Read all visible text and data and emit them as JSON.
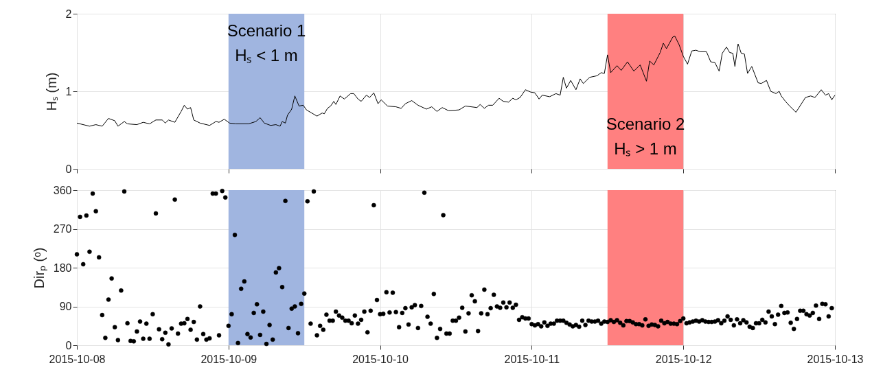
{
  "chart_data": [
    {
      "type": "line",
      "ylabel": "Hₛ (m)",
      "xlim": [
        "2015-10-08",
        "2015-10-13"
      ],
      "xticks": [
        "2015-10-08",
        "2015-10-09",
        "2015-10-10",
        "2015-10-11",
        "2015-10-12",
        "2015-10-13"
      ],
      "ylim": [
        0,
        2
      ],
      "yticks": [
        0,
        1,
        2
      ],
      "grid": true,
      "tick_labels": "y",
      "marker": "none",
      "line_style": "solid",
      "bands": [
        {
          "axis": "x",
          "from": "2015-10-09T00:00",
          "to": "2015-10-09T12:00",
          "color": "#a0b5e0",
          "label": "Scenario 1\nHₛ < 1 m"
        },
        {
          "axis": "x",
          "from": "2015-10-11T12:00",
          "to": "2015-10-12T00:00",
          "color": "#ff8080",
          "label": "Scenario 2\nHₛ > 1 m"
        }
      ],
      "x": [
        "2015-10-08T00:00",
        "2015-10-08T02:00",
        "2015-10-08T03:00",
        "2015-10-08T04:00",
        "2015-10-08T05:00",
        "2015-10-08T06:00",
        "2015-10-08T06:30",
        "2015-10-08T07:30",
        "2015-10-08T08:00",
        "2015-10-08T09:30",
        "2015-10-08T10:30",
        "2015-10-08T11:30",
        "2015-10-08T12:30",
        "2015-10-08T13:30",
        "2015-10-08T14:00",
        "2015-10-08T14:30",
        "2015-10-08T15:30",
        "2015-10-08T16:30",
        "2015-10-08T17:00",
        "2015-10-08T17:30",
        "2015-10-08T18:00",
        "2015-10-08T18:30",
        "2015-10-08T19:30",
        "2015-10-08T21:00",
        "2015-10-08T22:00",
        "2015-10-08T22:30",
        "2015-10-08T23:20",
        "2015-10-09T00:10",
        "2015-10-09T01:10",
        "2015-10-09T03:10",
        "2015-10-09T04:20",
        "2015-10-09T05:00",
        "2015-10-09T05:40",
        "2015-10-09T06:40",
        "2015-10-09T07:30",
        "2015-10-09T08:10",
        "2015-10-09T08:30",
        "2015-10-09T09:00",
        "2015-10-09T09:20",
        "2015-10-09T10:00",
        "2015-10-09T10:30",
        "2015-10-09T11:10",
        "2015-10-09T11:50",
        "2015-10-09T12:20",
        "2015-10-09T13:10",
        "2015-10-09T14:00",
        "2015-10-09T14:50",
        "2015-10-09T15:10",
        "2015-10-09T15:40",
        "2015-10-09T16:10",
        "2015-10-09T16:40",
        "2015-10-09T17:00",
        "2015-10-09T17:40",
        "2015-10-09T18:20",
        "2015-10-09T19:20",
        "2015-10-09T19:50",
        "2015-10-09T20:30",
        "2015-10-09T21:00",
        "2015-10-09T21:50",
        "2015-10-09T22:20",
        "2015-10-09T23:00",
        "2015-10-09T23:40",
        "2015-10-10T00:10",
        "2015-10-10T01:10",
        "2015-10-10T02:30",
        "2015-10-10T03:20",
        "2015-10-10T04:00",
        "2015-10-10T05:00",
        "2015-10-10T06:00",
        "2015-10-10T07:20",
        "2015-10-10T08:10",
        "2015-10-10T09:00",
        "2015-10-10T09:50",
        "2015-10-10T10:50",
        "2015-10-10T12:30",
        "2015-10-10T13:30",
        "2015-10-10T15:20",
        "2015-10-10T15:50",
        "2015-10-10T16:30",
        "2015-10-10T17:10",
        "2015-10-10T17:50",
        "2015-10-10T18:50",
        "2015-10-10T19:30",
        "2015-10-10T20:20",
        "2015-10-10T21:00",
        "2015-10-10T21:30",
        "2015-10-10T22:10",
        "2015-10-10T23:00",
        "2015-10-10T23:50",
        "2015-10-11T00:30",
        "2015-10-11T01:10",
        "2015-10-11T01:40",
        "2015-10-11T02:50",
        "2015-10-11T03:50",
        "2015-10-11T04:30",
        "2015-10-11T05:00",
        "2015-10-11T05:30",
        "2015-10-11T06:10",
        "2015-10-11T07:00",
        "2015-10-11T07:40",
        "2015-10-11T08:10",
        "2015-10-11T09:10",
        "2015-10-11T10:20",
        "2015-10-11T11:00",
        "2015-10-11T11:30",
        "2015-10-11T12:00",
        "2015-10-11T12:30",
        "2015-10-11T13:30",
        "2015-10-11T14:10",
        "2015-10-11T15:10",
        "2015-10-11T16:10",
        "2015-10-11T17:10",
        "2015-10-11T18:10",
        "2015-10-11T18:40",
        "2015-10-11T19:20",
        "2015-10-11T20:20",
        "2015-10-11T20:50",
        "2015-10-11T21:20",
        "2015-10-11T22:20",
        "2015-10-11T22:40",
        "2015-10-11T23:20",
        "2015-10-12T00:00",
        "2015-10-12T00:40",
        "2015-10-12T01:20",
        "2015-10-12T02:00",
        "2015-10-12T02:40",
        "2015-10-12T03:40",
        "2015-10-12T04:20",
        "2015-10-12T05:00",
        "2015-10-12T05:40",
        "2015-10-12T06:10",
        "2015-10-12T06:50",
        "2015-10-12T07:20",
        "2015-10-12T07:50",
        "2015-10-12T08:10",
        "2015-10-12T08:40",
        "2015-10-12T09:10",
        "2015-10-12T09:40",
        "2015-10-12T10:10",
        "2015-10-12T10:50",
        "2015-10-12T11:50",
        "2015-10-12T12:20",
        "2015-10-12T13:10",
        "2015-10-12T13:50",
        "2015-10-12T14:40",
        "2015-10-12T15:10",
        "2015-10-12T15:30",
        "2015-10-12T16:10",
        "2015-10-12T16:50",
        "2015-10-12T17:50",
        "2015-10-12T19:20",
        "2015-10-12T20:10",
        "2015-10-12T20:50",
        "2015-10-12T21:50",
        "2015-10-12T22:30",
        "2015-10-12T23:00",
        "2015-10-12T23:30",
        "2015-10-13T00:00"
      ],
      "series": [
        {
          "color": "#000000",
          "values": [
            0.59,
            0.55,
            0.57,
            0.55,
            0.65,
            0.62,
            0.55,
            0.61,
            0.58,
            0.57,
            0.6,
            0.58,
            0.63,
            0.63,
            0.59,
            0.63,
            0.6,
            0.74,
            0.82,
            0.77,
            0.79,
            0.63,
            0.59,
            0.56,
            0.61,
            0.6,
            0.64,
            0.59,
            0.58,
            0.58,
            0.61,
            0.66,
            0.59,
            0.56,
            0.57,
            0.55,
            0.61,
            0.59,
            0.69,
            0.77,
            0.94,
            0.81,
            0.82,
            0.76,
            0.72,
            0.68,
            0.72,
            0.71,
            0.78,
            0.81,
            0.87,
            0.83,
            0.94,
            0.9,
            0.97,
            0.97,
            0.9,
            0.87,
            0.95,
            0.92,
            0.98,
            0.84,
            0.89,
            0.81,
            0.8,
            0.78,
            0.84,
            0.88,
            0.82,
            0.77,
            0.8,
            0.74,
            0.79,
            0.75,
            0.76,
            0.81,
            0.79,
            0.83,
            0.78,
            0.82,
            0.82,
            0.91,
            0.87,
            0.86,
            0.91,
            0.89,
            0.92,
            1.02,
            0.99,
            0.98,
            0.9,
            0.95,
            0.93,
            0.97,
            0.95,
            1.18,
            1.04,
            1.14,
            1.02,
            1.16,
            1.1,
            1.18,
            1.2,
            1.24,
            1.23,
            1.47,
            1.24,
            1.33,
            1.27,
            1.38,
            1.26,
            1.34,
            1.13,
            1.39,
            1.34,
            1.5,
            1.62,
            1.55,
            1.7,
            1.71,
            1.6,
            1.45,
            1.35,
            1.52,
            1.53,
            1.51,
            1.51,
            1.38,
            1.37,
            1.26,
            1.49,
            1.57,
            1.5,
            1.49,
            1.32,
            1.61,
            1.49,
            1.48,
            1.23,
            1.32,
            1.11,
            1.1,
            1.14,
            1.0,
            0.97,
            1.0,
            0.94,
            0.87,
            0.81,
            0.73,
            0.92,
            0.94,
            0.92,
            1.02,
            0.95,
            0.97,
            0.89,
            0.95
          ]
        }
      ]
    },
    {
      "type": "scatter",
      "ylabel": "Dirₚ (ᵒ)",
      "xlim": [
        "2015-10-08",
        "2015-10-13"
      ],
      "xticks": [
        "2015-10-08",
        "2015-10-09",
        "2015-10-10",
        "2015-10-11",
        "2015-10-12",
        "2015-10-13"
      ],
      "ylim": [
        0,
        360
      ],
      "yticks": [
        0,
        90,
        180,
        270,
        360
      ],
      "grid": true,
      "marker": "circle",
      "bands": [
        {
          "axis": "x",
          "from": "2015-10-09T00:00",
          "to": "2015-10-09T12:00",
          "color": "#a0b5e0"
        },
        {
          "axis": "x",
          "from": "2015-10-11T12:00",
          "to": "2015-10-12T00:00",
          "color": "#ff8080"
        }
      ],
      "x": [
        "2015-10-08T00:00",
        "2015-10-08T00:30",
        "2015-10-08T01:00",
        "2015-10-08T01:30",
        "2015-10-08T02:00",
        "2015-10-08T02:30",
        "2015-10-08T03:00",
        "2015-10-08T03:30",
        "2015-10-08T04:00",
        "2015-10-08T04:30",
        "2015-10-08T05:00",
        "2015-10-08T05:30",
        "2015-10-08T06:00",
        "2015-10-08T06:30",
        "2015-10-08T07:00",
        "2015-10-08T07:30",
        "2015-10-08T08:00",
        "2015-10-08T08:30",
        "2015-10-08T09:00",
        "2015-10-08T09:30",
        "2015-10-08T10:00",
        "2015-10-08T10:30",
        "2015-10-08T11:00",
        "2015-10-08T11:30",
        "2015-10-08T12:00",
        "2015-10-08T12:30",
        "2015-10-08T13:00",
        "2015-10-08T13:30",
        "2015-10-08T14:00",
        "2015-10-08T14:30",
        "2015-10-08T15:00",
        "2015-10-08T15:30",
        "2015-10-08T16:00",
        "2015-10-08T16:30",
        "2015-10-08T17:00",
        "2015-10-08T17:30",
        "2015-10-08T18:00",
        "2015-10-08T18:30",
        "2015-10-08T19:00",
        "2015-10-08T19:30",
        "2015-10-08T20:00",
        "2015-10-08T20:30",
        "2015-10-08T21:00",
        "2015-10-08T21:30",
        "2015-10-08T22:00",
        "2015-10-08T22:30",
        "2015-10-08T23:00",
        "2015-10-08T23:30",
        "2015-10-09T00:00",
        "2015-10-09T00:30",
        "2015-10-09T01:00",
        "2015-10-09T01:30",
        "2015-10-09T02:00",
        "2015-10-09T02:30",
        "2015-10-09T03:00",
        "2015-10-09T03:30",
        "2015-10-09T04:00",
        "2015-10-09T04:30",
        "2015-10-09T05:00",
        "2015-10-09T05:30",
        "2015-10-09T06:00",
        "2015-10-09T06:30",
        "2015-10-09T07:00",
        "2015-10-09T07:30",
        "2015-10-09T08:00",
        "2015-10-09T08:30",
        "2015-10-09T09:00",
        "2015-10-09T09:30",
        "2015-10-09T10:00",
        "2015-10-09T10:30",
        "2015-10-09T11:00",
        "2015-10-09T11:30",
        "2015-10-09T12:00",
        "2015-10-09T12:30",
        "2015-10-09T13:00",
        "2015-10-09T13:30",
        "2015-10-09T14:00",
        "2015-10-09T14:30",
        "2015-10-09T15:00",
        "2015-10-09T15:30",
        "2015-10-09T16:00",
        "2015-10-09T16:30",
        "2015-10-09T17:00",
        "2015-10-09T17:30",
        "2015-10-09T18:00",
        "2015-10-09T18:30",
        "2015-10-09T19:00",
        "2015-10-09T19:30",
        "2015-10-09T20:00",
        "2015-10-09T20:30",
        "2015-10-09T21:00",
        "2015-10-09T21:30",
        "2015-10-09T22:00",
        "2015-10-09T22:30",
        "2015-10-09T23:00",
        "2015-10-09T23:30",
        "2015-10-10T00:00",
        "2015-10-10T00:30",
        "2015-10-10T01:00",
        "2015-10-10T01:30",
        "2015-10-10T02:00",
        "2015-10-10T02:30",
        "2015-10-10T03:00",
        "2015-10-10T03:30",
        "2015-10-10T04:00",
        "2015-10-10T04:30",
        "2015-10-10T05:00",
        "2015-10-10T05:30",
        "2015-10-10T06:00",
        "2015-10-10T06:30",
        "2015-10-10T07:00",
        "2015-10-10T07:30",
        "2015-10-10T08:00",
        "2015-10-10T08:30",
        "2015-10-10T09:00",
        "2015-10-10T09:30",
        "2015-10-10T10:00",
        "2015-10-10T10:30",
        "2015-10-10T11:00",
        "2015-10-10T11:30",
        "2015-10-10T12:00",
        "2015-10-10T12:30",
        "2015-10-10T13:00",
        "2015-10-10T13:30",
        "2015-10-10T14:00",
        "2015-10-10T14:30",
        "2015-10-10T15:00",
        "2015-10-10T15:30",
        "2015-10-10T16:00",
        "2015-10-10T16:30",
        "2015-10-10T17:00",
        "2015-10-10T17:30",
        "2015-10-10T18:00",
        "2015-10-10T18:30",
        "2015-10-10T19:00",
        "2015-10-10T19:30",
        "2015-10-10T20:00",
        "2015-10-10T20:30",
        "2015-10-10T21:00",
        "2015-10-10T21:30",
        "2015-10-10T22:00",
        "2015-10-10T22:30",
        "2015-10-10T23:00",
        "2015-10-10T23:30",
        "2015-10-11T00:00",
        "2015-10-11T00:30",
        "2015-10-11T01:00",
        "2015-10-11T01:30",
        "2015-10-11T02:00",
        "2015-10-11T02:30",
        "2015-10-11T03:00",
        "2015-10-11T03:30",
        "2015-10-11T04:00",
        "2015-10-11T04:30",
        "2015-10-11T05:00",
        "2015-10-11T05:30",
        "2015-10-11T06:00",
        "2015-10-11T06:30",
        "2015-10-11T07:00",
        "2015-10-11T07:30",
        "2015-10-11T08:00",
        "2015-10-11T08:30",
        "2015-10-11T09:00",
        "2015-10-11T09:30",
        "2015-10-11T10:00",
        "2015-10-11T10:30",
        "2015-10-11T11:00",
        "2015-10-11T11:30",
        "2015-10-11T12:00",
        "2015-10-11T12:30",
        "2015-10-11T13:00",
        "2015-10-11T13:30",
        "2015-10-11T14:00",
        "2015-10-11T14:30",
        "2015-10-11T15:00",
        "2015-10-11T15:30",
        "2015-10-11T16:00",
        "2015-10-11T16:30",
        "2015-10-11T17:00",
        "2015-10-11T17:30",
        "2015-10-11T18:00",
        "2015-10-11T18:30",
        "2015-10-11T19:00",
        "2015-10-11T19:30",
        "2015-10-11T20:00",
        "2015-10-11T20:30",
        "2015-10-11T21:00",
        "2015-10-11T21:30",
        "2015-10-11T22:00",
        "2015-10-11T22:30",
        "2015-10-11T23:00",
        "2015-10-11T23:30",
        "2015-10-12T00:00",
        "2015-10-12T00:30",
        "2015-10-12T01:00",
        "2015-10-12T01:30",
        "2015-10-12T02:00",
        "2015-10-12T02:30",
        "2015-10-12T03:00",
        "2015-10-12T03:30",
        "2015-10-12T04:00",
        "2015-10-12T04:30",
        "2015-10-12T05:00",
        "2015-10-12T05:30",
        "2015-10-12T06:00",
        "2015-10-12T06:30",
        "2015-10-12T07:00",
        "2015-10-12T07:30",
        "2015-10-12T08:00",
        "2015-10-12T08:30",
        "2015-10-12T09:00",
        "2015-10-12T09:30",
        "2015-10-12T10:00",
        "2015-10-12T10:30",
        "2015-10-12T11:00",
        "2015-10-12T11:30",
        "2015-10-12T12:00",
        "2015-10-12T12:30",
        "2015-10-12T13:00",
        "2015-10-12T13:30",
        "2015-10-12T14:00",
        "2015-10-12T14:30",
        "2015-10-12T15:00",
        "2015-10-12T15:30",
        "2015-10-12T16:00",
        "2015-10-12T16:30",
        "2015-10-12T17:00",
        "2015-10-12T17:30",
        "2015-10-12T18:00",
        "2015-10-12T18:30",
        "2015-10-12T19:00",
        "2015-10-12T19:30",
        "2015-10-12T20:00",
        "2015-10-12T20:30",
        "2015-10-12T21:00",
        "2015-10-12T21:30",
        "2015-10-12T22:00",
        "2015-10-12T22:30",
        "2015-10-12T23:00",
        "2015-10-12T23:30"
      ],
      "series": [
        {
          "color": "#000000",
          "values": [
            211,
            298,
            188,
            301,
            217,
            352,
            311,
            204,
            70,
            17,
            106,
            155,
            42,
            12,
            127,
            357,
            51,
            10,
            9,
            32,
            55,
            15,
            50,
            15,
            72,
            306,
            37,
            14,
            29,
            2,
            39,
            338,
            27,
            50,
            51,
            61,
            36,
            54,
            13,
            90,
            26,
            13,
            16,
            352,
            352,
            23,
            358,
            343,
            45,
            72,
            256,
            5,
            131,
            148,
            26,
            18,
            75,
            95,
            24,
            78,
            3,
            47,
            13,
            169,
            179,
            135,
            335,
            40,
            85,
            90,
            28,
            96,
            120,
            334,
            50,
            357,
            23,
            45,
            36,
            71,
            57,
            57,
            78,
            69,
            64,
            57,
            57,
            51,
            69,
            50,
            59,
            78,
            30,
            80,
            325,
            105,
            72,
            73,
            123,
            76,
            122,
            77,
            42,
            75,
            86,
            48,
            88,
            93,
            40,
            91,
            354,
            66,
            50,
            119,
            17,
            38,
            302,
            27,
            27,
            57,
            57,
            64,
            87,
            32,
            74,
            116,
            102,
            33,
            74,
            129,
            72,
            86,
            117,
            90,
            87,
            99,
            88,
            99,
            87,
            94,
            59,
            65,
            62,
            62,
            49,
            46,
            49,
            44,
            53,
            45,
            50,
            50,
            57,
            57,
            57,
            52,
            48,
            44,
            47,
            43,
            57,
            47,
            57,
            55,
            55,
            57,
            50,
            55,
            54,
            58,
            54,
            58,
            52,
            46,
            56,
            56,
            53,
            49,
            49,
            46,
            60,
            45,
            48,
            47,
            44,
            57,
            51,
            54,
            50,
            50,
            49,
            56,
            62,
            51,
            53,
            55,
            57,
            55,
            58,
            55,
            54,
            54,
            55,
            58,
            51,
            57,
            67,
            59,
            46,
            60,
            51,
            58,
            53,
            43,
            40,
            51,
            51,
            59,
            53,
            78,
            67,
            49,
            71,
            91,
            75,
            76,
            52,
            38,
            61,
            80,
            80,
            72,
            69,
            75,
            92,
            61,
            96,
            95,
            67,
            86
          ]
        }
      ]
    }
  ]
}
